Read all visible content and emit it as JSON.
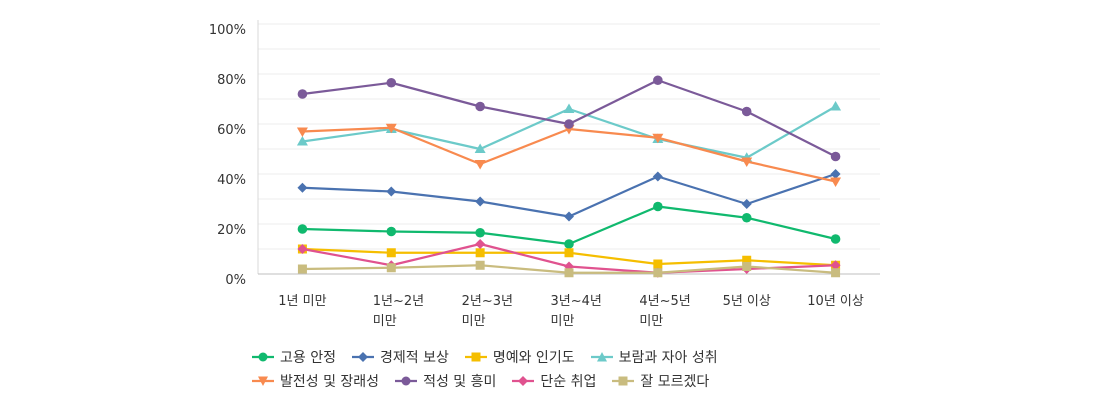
{
  "chart_data": {
    "type": "line",
    "categories": [
      [
        "1년 미만"
      ],
      [
        "1년~2년",
        "미만"
      ],
      [
        "2년~3년",
        "미만"
      ],
      [
        "3년~4년",
        "미만"
      ],
      [
        "4년~5년",
        "미만"
      ],
      [
        "5년 이상"
      ],
      [
        "10년 이상"
      ]
    ],
    "ylim": [
      0,
      100
    ],
    "yticks": [
      "0%",
      "20%",
      "40%",
      "60%",
      "80%",
      "100%"
    ],
    "ytick_values": [
      0,
      20,
      40,
      60,
      80,
      100
    ],
    "grid": true,
    "legend_position": "bottom",
    "series": [
      {
        "name": "고용 안정",
        "color": "#10b96e",
        "marker": "circle",
        "values": [
          18,
          17,
          16.5,
          12,
          27,
          22.5,
          14
        ]
      },
      {
        "name": "경제적 보상",
        "color": "#4a72b0",
        "marker": "diamond",
        "values": [
          34.5,
          33,
          29,
          23,
          39,
          28,
          40
        ]
      },
      {
        "name": "명예와 인기도",
        "color": "#f5be00",
        "marker": "square",
        "values": [
          10,
          8.5,
          8.5,
          8.5,
          4,
          5.5,
          3.5
        ]
      },
      {
        "name": "보람과 자아 성취",
        "color": "#6ccac9",
        "marker": "triangle-up",
        "values": [
          53,
          58,
          50,
          66,
          54,
          46.5,
          67
        ]
      },
      {
        "name": "발전성 및 장래성",
        "color": "#f88a4f",
        "marker": "triangle-down",
        "values": [
          57,
          58.5,
          44,
          58,
          54.5,
          45,
          37
        ]
      },
      {
        "name": "적성 및 흥미",
        "color": "#7b5a99",
        "marker": "circle",
        "values": [
          72,
          76.5,
          67,
          60,
          77.5,
          65,
          47
        ]
      },
      {
        "name": "단순 취업",
        "color": "#e0528f",
        "marker": "diamond",
        "values": [
          10,
          3.5,
          12,
          3,
          0.5,
          2,
          3.5
        ]
      },
      {
        "name": "잘 모르겠다",
        "color": "#c9bc7f",
        "marker": "square",
        "values": [
          2,
          2.5,
          3.5,
          0.5,
          0.5,
          3,
          0.5
        ]
      }
    ]
  }
}
